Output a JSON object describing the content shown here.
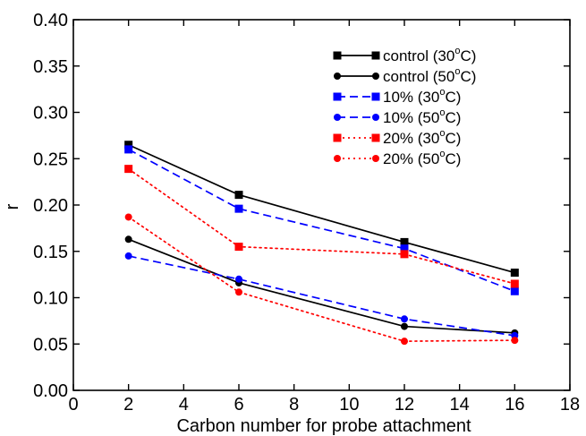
{
  "chart_data": {
    "type": "line",
    "title": "",
    "xlabel": "Carbon number for probe attachment",
    "ylabel": "r",
    "xlim": [
      0,
      18
    ],
    "ylim": [
      0.0,
      0.4
    ],
    "xticks": [
      0,
      2,
      4,
      6,
      8,
      10,
      12,
      14,
      16,
      18
    ],
    "yticks": [
      "0.00",
      "0.05",
      "0.10",
      "0.15",
      "0.20",
      "0.25",
      "0.30",
      "0.35",
      "0.40"
    ],
    "grid": false,
    "legend_position": "top-right",
    "x": [
      2,
      6,
      12,
      16
    ],
    "series": [
      {
        "name": "control (30°C)",
        "legend_text": "control (30",
        "values": [
          0.265,
          0.211,
          0.16,
          0.127
        ],
        "color": "#000000",
        "dash": "solid",
        "marker": "square"
      },
      {
        "name": "control (50°C)",
        "legend_text": "control (50",
        "values": [
          0.163,
          0.116,
          0.069,
          0.062
        ],
        "color": "#000000",
        "dash": "solid",
        "marker": "circle"
      },
      {
        "name": "10% (30°C)",
        "legend_text": "10% (30",
        "values": [
          0.26,
          0.196,
          0.153,
          0.107
        ],
        "color": "#0000ff",
        "dash": "dashed",
        "marker": "square"
      },
      {
        "name": "10% (50°C)",
        "legend_text": "10% (50",
        "values": [
          0.145,
          0.12,
          0.077,
          0.059
        ],
        "color": "#0000ff",
        "dash": "dashed",
        "marker": "circle"
      },
      {
        "name": "20% (30°C)",
        "legend_text": "20% (30",
        "values": [
          0.239,
          0.155,
          0.147,
          0.115
        ],
        "color": "#ff0000",
        "dash": "dotted",
        "marker": "square"
      },
      {
        "name": "20% (50°C)",
        "legend_text": "20% (50",
        "values": [
          0.187,
          0.106,
          0.053,
          0.054
        ],
        "color": "#ff0000",
        "dash": "dotted",
        "marker": "circle"
      }
    ],
    "legend_units": {
      "degree": "o",
      "unit": "C)"
    }
  }
}
